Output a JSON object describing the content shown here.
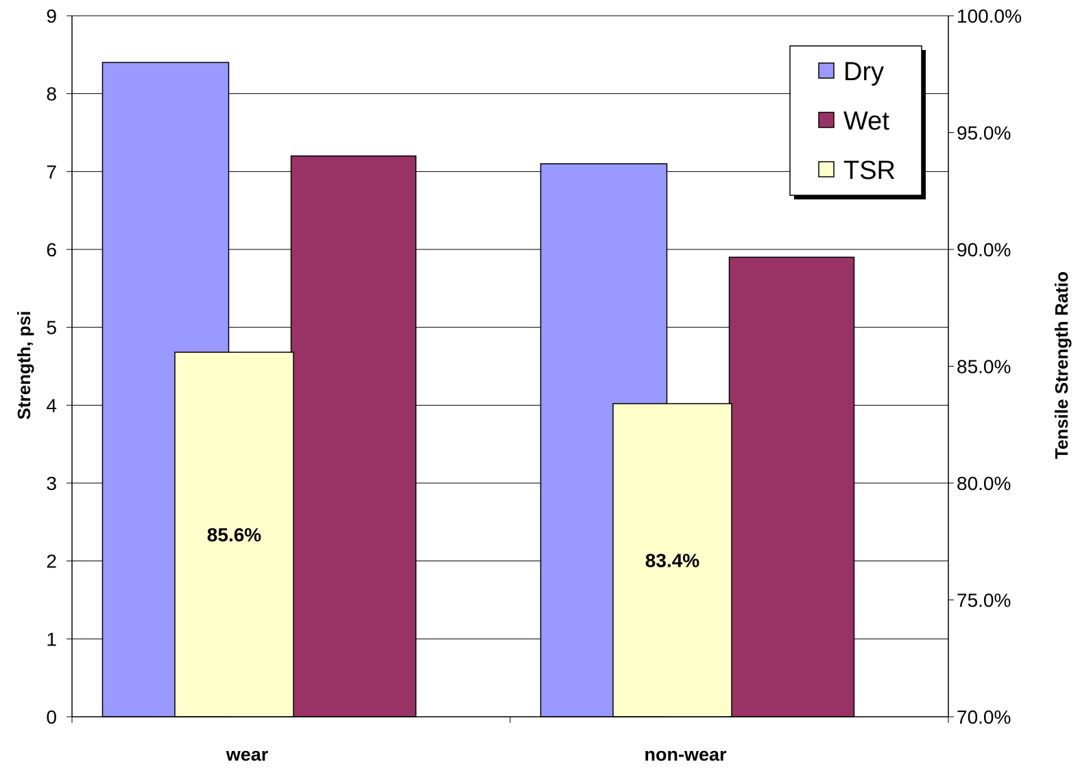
{
  "chart_data": {
    "type": "bar",
    "categories": [
      "wear",
      "non-wear"
    ],
    "series": [
      {
        "name": "Dry",
        "axis": "left",
        "values": [
          8.4,
          7.1
        ],
        "color": "#9999FF"
      },
      {
        "name": "Wet",
        "axis": "left",
        "values": [
          7.2,
          5.9
        ],
        "color": "#993366"
      },
      {
        "name": "TSR",
        "axis": "right",
        "values": [
          85.6,
          83.4
        ],
        "color": "#FFFFCC"
      }
    ],
    "data_labels": [
      "85.6%",
      "83.4%"
    ],
    "ylabel": "Strength, psi",
    "ylabel_right": "Tensile Strength Ratio",
    "ylim": [
      0,
      9
    ],
    "ylim_right": [
      70,
      100
    ],
    "yticks": [
      "0",
      "1",
      "2",
      "3",
      "4",
      "5",
      "6",
      "7",
      "8",
      "9"
    ],
    "yticks_right": [
      "70.0%",
      "75.0%",
      "80.0%",
      "85.0%",
      "90.0%",
      "95.0%",
      "100.0%"
    ],
    "grid": true,
    "legend": "top-right"
  }
}
